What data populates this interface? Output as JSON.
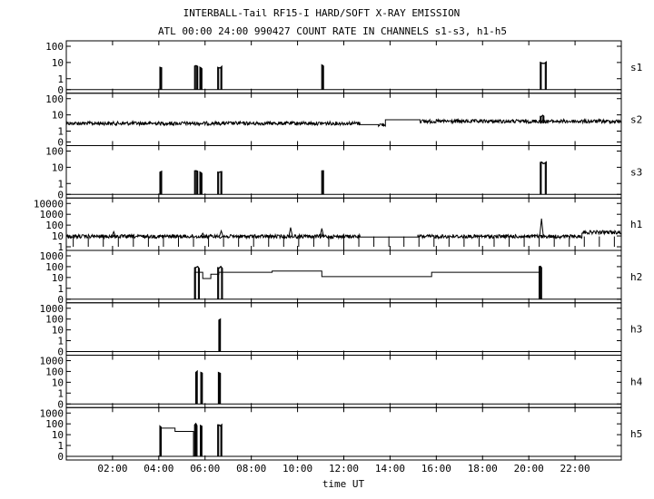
{
  "chart_data": {
    "type": "line",
    "title": "INTERBALL-Tail RF15-I HARD/SOFT X-RAY EMISSION",
    "subtitle": "ATL 00:00 24:00 990427  COUNT RATE IN CHANNELS s1-s3, h1-h5",
    "xlabel": "time UT",
    "xlim": [
      0,
      24
    ],
    "x_unit": "hours UT",
    "x_ticks": [
      {
        "x": 2,
        "label": "02:00"
      },
      {
        "x": 4,
        "label": "04:00"
      },
      {
        "x": 6,
        "label": "06:00"
      },
      {
        "x": 8,
        "label": "08:00"
      },
      {
        "x": 10,
        "label": "10:00"
      },
      {
        "x": 12,
        "label": "12:00"
      },
      {
        "x": 14,
        "label": "14:00"
      },
      {
        "x": 16,
        "label": "16:00"
      },
      {
        "x": 18,
        "label": "18:00"
      },
      {
        "x": 20,
        "label": "20:00"
      },
      {
        "x": 22,
        "label": "22:00"
      }
    ],
    "y_scale": "log",
    "grid": false,
    "panels": [
      {
        "name": "s1",
        "y_ticks": [
          "100",
          "10",
          "1",
          "0"
        ],
        "baseline": 0,
        "bursts": [
          {
            "start": 4.05,
            "end": 4.12,
            "peak": 5
          },
          {
            "start": 5.55,
            "end": 5.68,
            "peak": 6
          },
          {
            "start": 5.78,
            "end": 5.86,
            "peak": 5
          },
          {
            "start": 6.55,
            "end": 6.72,
            "peak": 5
          },
          {
            "start": 11.05,
            "end": 11.12,
            "peak": 7
          },
          {
            "start": 20.5,
            "end": 20.75,
            "peak": 10
          }
        ]
      },
      {
        "name": "s2",
        "y_ticks": [
          "100",
          "10",
          "1",
          "0"
        ],
        "baseline": 3,
        "segments": [
          {
            "start": 0,
            "end": 12.7,
            "level": 3,
            "noise": true
          },
          {
            "start": 12.7,
            "end": 13.5,
            "level": 2.5,
            "noise": false
          },
          {
            "start": 13.5,
            "end": 13.8,
            "level": 2.5,
            "noise": true
          },
          {
            "start": 13.8,
            "end": 15.3,
            "level": 5,
            "noise": false
          },
          {
            "start": 15.3,
            "end": 24,
            "level": 4,
            "noise": true
          }
        ],
        "bursts": [
          {
            "start": 20.5,
            "end": 20.65,
            "peak": 8
          }
        ]
      },
      {
        "name": "s3",
        "y_ticks": [
          "100",
          "10",
          "1",
          "0"
        ],
        "baseline": 0,
        "bursts": [
          {
            "start": 4.05,
            "end": 4.12,
            "peak": 5
          },
          {
            "start": 5.55,
            "end": 5.68,
            "peak": 6
          },
          {
            "start": 5.78,
            "end": 5.86,
            "peak": 5
          },
          {
            "start": 6.55,
            "end": 6.72,
            "peak": 5
          },
          {
            "start": 11.05,
            "end": 11.12,
            "peak": 6
          },
          {
            "start": 20.5,
            "end": 20.75,
            "peak": 20
          }
        ]
      },
      {
        "name": "h1",
        "y_ticks": [
          "10000",
          "1000",
          "100",
          "10",
          "1"
        ],
        "baseline": 9,
        "segments": [
          {
            "start": 0,
            "end": 12.7,
            "level": 9,
            "noise": true
          },
          {
            "start": 12.7,
            "end": 15.2,
            "level": 8,
            "noise": false
          },
          {
            "start": 15.2,
            "end": 22.3,
            "level": 9,
            "noise": true
          },
          {
            "start": 22.3,
            "end": 24,
            "level": 22,
            "noise": true
          }
        ],
        "peaks": [
          {
            "x": 2.05,
            "value": 25
          },
          {
            "x": 5.9,
            "value": 18
          },
          {
            "x": 6.7,
            "value": 30
          },
          {
            "x": 9.7,
            "value": 60
          },
          {
            "x": 11.05,
            "value": 50
          },
          {
            "x": 20.55,
            "value": 400
          }
        ],
        "dropouts_every_h": 0.65
      },
      {
        "name": "h2",
        "y_ticks": [
          "1000",
          "100",
          "10",
          "1",
          "0"
        ],
        "baseline": 0,
        "steps": [
          {
            "start": 5.55,
            "end": 5.9,
            "level": 30
          },
          {
            "start": 5.9,
            "end": 6.25,
            "level": 8
          },
          {
            "start": 6.25,
            "end": 6.6,
            "level": 20
          },
          {
            "start": 6.6,
            "end": 8.9,
            "level": 30
          },
          {
            "start": 8.9,
            "end": 11.05,
            "level": 40
          },
          {
            "start": 11.05,
            "end": 15.8,
            "level": 12
          },
          {
            "start": 15.8,
            "end": 20.5,
            "level": 30
          }
        ],
        "bursts": [
          {
            "start": 5.55,
            "end": 5.75,
            "peak": 80
          },
          {
            "start": 6.55,
            "end": 6.75,
            "peak": 80
          },
          {
            "start": 20.45,
            "end": 20.55,
            "peak": 100
          }
        ]
      },
      {
        "name": "h3",
        "y_ticks": [
          "1000",
          "100",
          "10",
          "1",
          "0"
        ],
        "baseline": 0,
        "bursts": [
          {
            "start": 6.6,
            "end": 6.66,
            "peak": 80
          }
        ]
      },
      {
        "name": "h4",
        "y_ticks": [
          "1000",
          "100",
          "10",
          "1",
          "0"
        ],
        "baseline": 0,
        "bursts": [
          {
            "start": 5.6,
            "end": 5.66,
            "peak": 80
          },
          {
            "start": 5.82,
            "end": 5.88,
            "peak": 80
          },
          {
            "start": 6.58,
            "end": 6.66,
            "peak": 80
          }
        ]
      },
      {
        "name": "h5",
        "y_ticks": [
          "1000",
          "100",
          "10",
          "1",
          "0"
        ],
        "baseline": 0,
        "steps": [
          {
            "start": 4.05,
            "end": 4.7,
            "level": 40
          },
          {
            "start": 4.7,
            "end": 5.5,
            "level": 20
          }
        ],
        "bursts": [
          {
            "start": 4.05,
            "end": 4.1,
            "peak": 60
          },
          {
            "start": 5.55,
            "end": 5.65,
            "peak": 80
          },
          {
            "start": 5.8,
            "end": 5.86,
            "peak": 70
          },
          {
            "start": 6.55,
            "end": 6.72,
            "peak": 80
          }
        ]
      }
    ]
  }
}
